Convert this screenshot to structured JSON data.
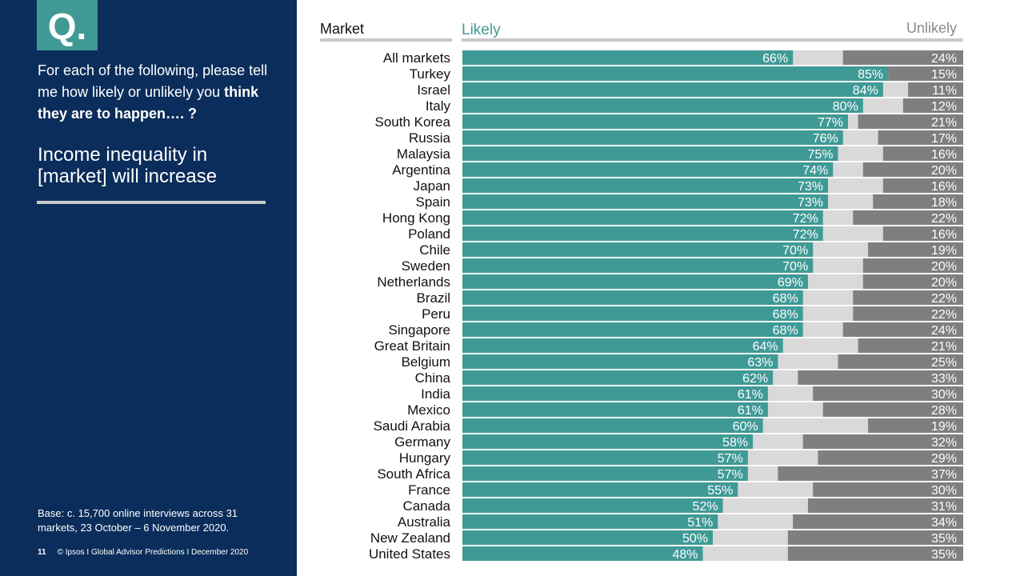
{
  "slide": {
    "q_badge": "Q.",
    "question_part1": "For each of the following, please tell me how likely or unlikely you ",
    "question_bold": "think they are to happen…. ?",
    "statement": "Income inequality in [market] will increase",
    "base_note": "Base: c. 15,700 online interviews across 31 markets,  23 October – 6 November 2020.",
    "page_number": "11",
    "footer_text": "© Ipsos I Global Advisor Predictions I December 2020"
  },
  "chart_data": {
    "type": "bar",
    "orientation": "horizontal",
    "stacked": true,
    "category_header": "Market",
    "likely_header": "Likely",
    "unlikely_header": "Unlikely",
    "colors": {
      "likely": "#3f9a95",
      "middle": "#d9d9d9",
      "unlikely": "#7f7f7f"
    },
    "categories": [
      "All markets",
      "Turkey",
      "Israel",
      "Italy",
      "South Korea",
      "Russia",
      "Malaysia",
      "Argentina",
      "Japan",
      "Spain",
      "Hong Kong",
      "Poland",
      "Chile",
      "Sweden",
      "Netherlands",
      "Brazil",
      "Peru",
      "Singapore",
      "Great Britain",
      "Belgium",
      "China",
      "India",
      "Mexico",
      "Saudi Arabia",
      "Germany",
      "Hungary",
      "South Africa",
      "France",
      "Canada",
      "Australia",
      "New Zealand",
      "United States"
    ],
    "series": [
      {
        "name": "Likely",
        "values": [
          66,
          85,
          84,
          80,
          77,
          76,
          75,
          74,
          73,
          73,
          72,
          72,
          70,
          70,
          69,
          68,
          68,
          68,
          64,
          63,
          62,
          61,
          61,
          60,
          58,
          57,
          57,
          55,
          52,
          51,
          50,
          48
        ]
      },
      {
        "name": "Unlikely",
        "values": [
          24,
          15,
          11,
          12,
          21,
          17,
          16,
          20,
          16,
          18,
          22,
          16,
          19,
          20,
          20,
          22,
          22,
          24,
          21,
          25,
          33,
          30,
          28,
          19,
          32,
          29,
          37,
          30,
          31,
          34,
          35,
          35
        ]
      }
    ],
    "xlim": [
      0,
      100
    ],
    "value_suffix": "%"
  }
}
